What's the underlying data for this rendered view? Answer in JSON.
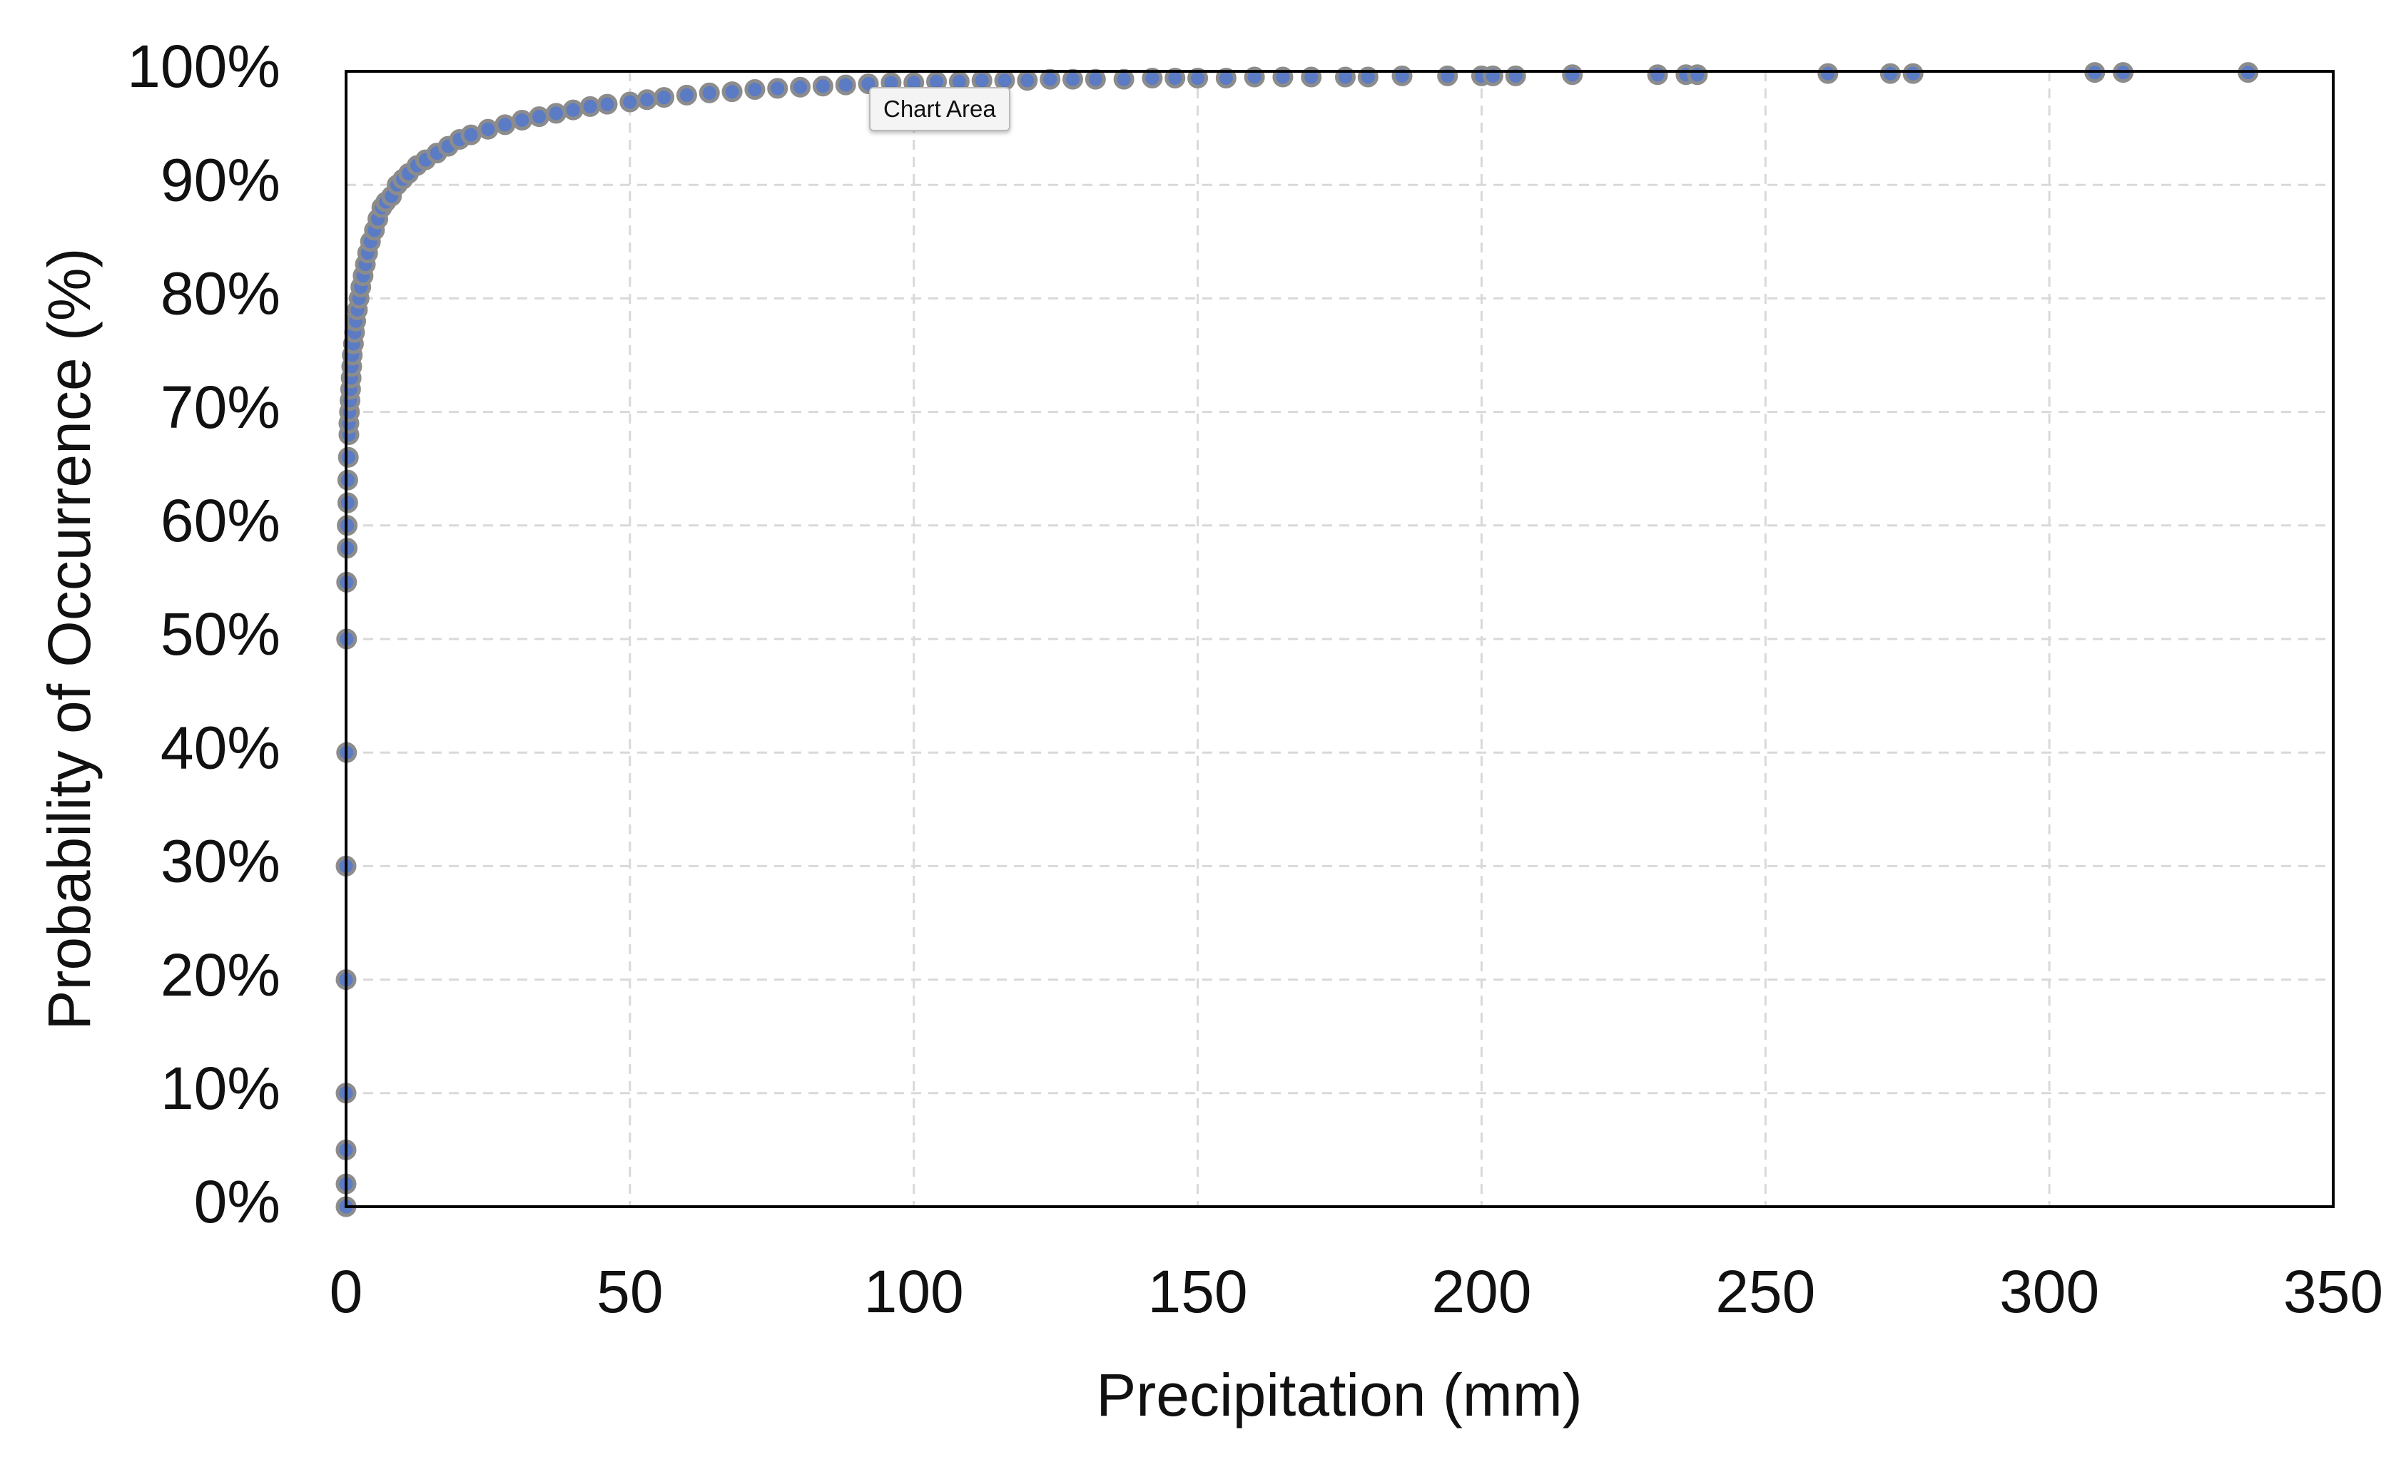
{
  "tooltip": {
    "label": "Chart Area"
  },
  "chart_data": {
    "type": "scatter",
    "title": "",
    "xlabel": "Precipitation (mm)",
    "ylabel": "Probability of Occurrence (%)",
    "xlim": [
      0,
      350
    ],
    "ylim": [
      0,
      100
    ],
    "x_ticks": [
      0,
      50,
      100,
      150,
      200,
      250,
      300,
      350
    ],
    "y_ticks": [
      0,
      10,
      20,
      30,
      40,
      50,
      60,
      70,
      80,
      90,
      100
    ],
    "y_tick_format": "percent",
    "grid": "dashed",
    "legend": "none",
    "marker_fill": "#5b7bc4",
    "marker_edge": "#8c8c8c",
    "series": [
      {
        "x": [
          0,
          0,
          0,
          0,
          0,
          0,
          0.1,
          0.1,
          0.1,
          0.2,
          0.2,
          0.3,
          0.3,
          0.4,
          0.5,
          0.5,
          0.6,
          0.7,
          0.8,
          0.9,
          1,
          1.1,
          1.3,
          1.5,
          1.7,
          2,
          2.3,
          2.6,
          3,
          3.4,
          3.8,
          4.3,
          5,
          5.6,
          6.3,
          7,
          8,
          9,
          10,
          11,
          12.5,
          14,
          16,
          18,
          20,
          22,
          25,
          28,
          31,
          34,
          37,
          40,
          43,
          46,
          50,
          53,
          56,
          60,
          64,
          68,
          72,
          76,
          80,
          84,
          88,
          92,
          96,
          100,
          104,
          108,
          112,
          116,
          120,
          124,
          128,
          132,
          137,
          142,
          146,
          150,
          155,
          160,
          165,
          170,
          176,
          180,
          186,
          194,
          200,
          202,
          206,
          216,
          231,
          236,
          238,
          261,
          272,
          276,
          308,
          313,
          335
        ],
        "y": [
          0,
          2,
          5,
          10,
          20,
          30,
          40,
          50,
          55,
          58,
          60,
          62,
          64,
          66,
          68,
          69,
          70,
          71,
          72,
          73,
          74,
          75,
          76,
          77,
          78,
          79,
          80,
          81,
          82,
          83,
          84,
          85,
          86,
          87,
          88,
          88.5,
          89,
          90,
          90.5,
          91,
          91.7,
          92.2,
          92.8,
          93.4,
          94,
          94.4,
          94.9,
          95.3,
          95.7,
          96,
          96.3,
          96.6,
          96.9,
          97.1,
          97.3,
          97.5,
          97.7,
          97.9,
          98.1,
          98.2,
          98.4,
          98.5,
          98.6,
          98.7,
          98.8,
          98.9,
          99,
          99,
          99.1,
          99.1,
          99.2,
          99.2,
          99.2,
          99.3,
          99.3,
          99.3,
          99.3,
          99.4,
          99.4,
          99.4,
          99.4,
          99.5,
          99.5,
          99.5,
          99.5,
          99.5,
          99.6,
          99.6,
          99.6,
          99.6,
          99.6,
          99.7,
          99.7,
          99.7,
          99.7,
          99.8,
          99.8,
          99.8,
          99.9,
          99.9,
          99.9
        ]
      }
    ]
  }
}
